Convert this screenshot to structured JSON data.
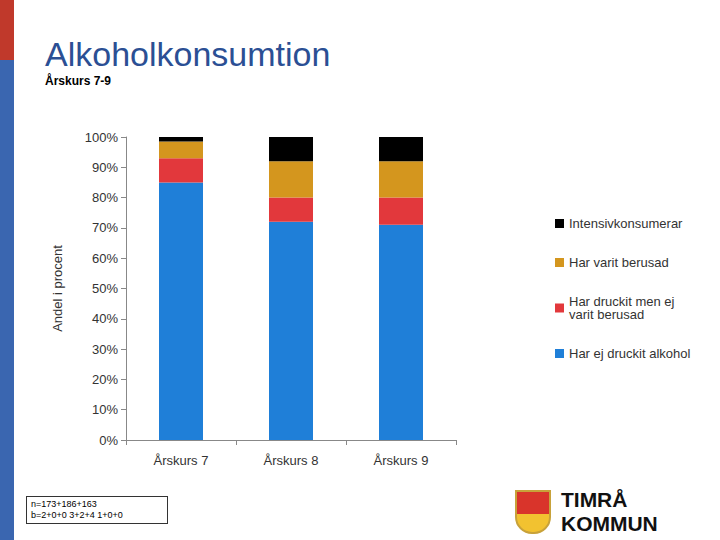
{
  "chart_data": {
    "type": "bar",
    "title": "Alkoholkonsumtion",
    "subtitle": "Årskurs 7-9",
    "ylabel": "Andel i procent",
    "categories": [
      "Årskurs 7",
      "Årskurs 8",
      "Årskurs 9"
    ],
    "series": [
      {
        "name": "Har ej druckit alkohol",
        "color": "#1f7fd8",
        "values": [
          85,
          72,
          71
        ]
      },
      {
        "name": "Har druckit men ej varit berusad",
        "color": "#e2383c",
        "values": [
          8,
          8,
          9
        ]
      },
      {
        "name": "Har varit berusad",
        "color": "#d4961e",
        "values": [
          5.5,
          12,
          12
        ]
      },
      {
        "name": "Intensivkonsumerar",
        "color": "#000000",
        "values": [
          1.5,
          8,
          8
        ]
      }
    ],
    "stacked": true,
    "ylim": [
      0,
      100
    ],
    "yticks": [
      {
        "value": 0,
        "label": "0%"
      },
      {
        "value": 10,
        "label": "10%"
      },
      {
        "value": 20,
        "label": "20%"
      },
      {
        "value": 30,
        "label": "30%"
      },
      {
        "value": 40,
        "label": "40%"
      },
      {
        "value": 50,
        "label": "50%"
      },
      {
        "value": 60,
        "label": "60%"
      },
      {
        "value": 70,
        "label": "70%"
      },
      {
        "value": 80,
        "label": "80%"
      },
      {
        "value": 90,
        "label": "90%"
      },
      {
        "value": 100,
        "label": "100%"
      }
    ],
    "grid": false,
    "legend": "right",
    "annotations": [
      "n=173+186+163",
      "b=2+0+0 3+2+4 1+0+0"
    ],
    "footer": "TIMRÅ KOMMUN"
  }
}
